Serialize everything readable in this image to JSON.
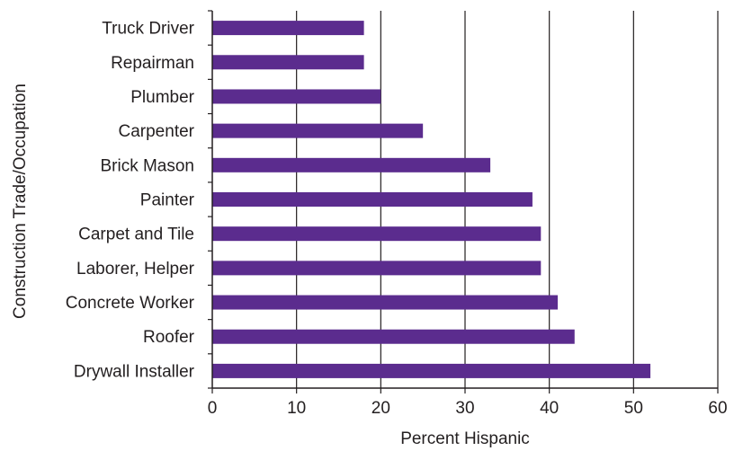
{
  "chart_data": {
    "type": "bar",
    "orientation": "horizontal",
    "categories": [
      "Truck Driver",
      "Repairman",
      "Plumber",
      "Carpenter",
      "Brick Mason",
      "Painter",
      "Carpet and Tile",
      "Laborer, Helper",
      "Concrete Worker",
      "Roofer",
      "Drywall Installer"
    ],
    "values": [
      18,
      18,
      20,
      25,
      33,
      38,
      39,
      39,
      41,
      43,
      52
    ],
    "xlabel": "Percent Hispanic",
    "ylabel": "Construction Trade/Occupation",
    "xlim": [
      0,
      60
    ],
    "xticks": [
      0,
      10,
      20,
      30,
      40,
      50,
      60
    ],
    "grid": "vertical",
    "bar_color": "#5b2c8e"
  }
}
